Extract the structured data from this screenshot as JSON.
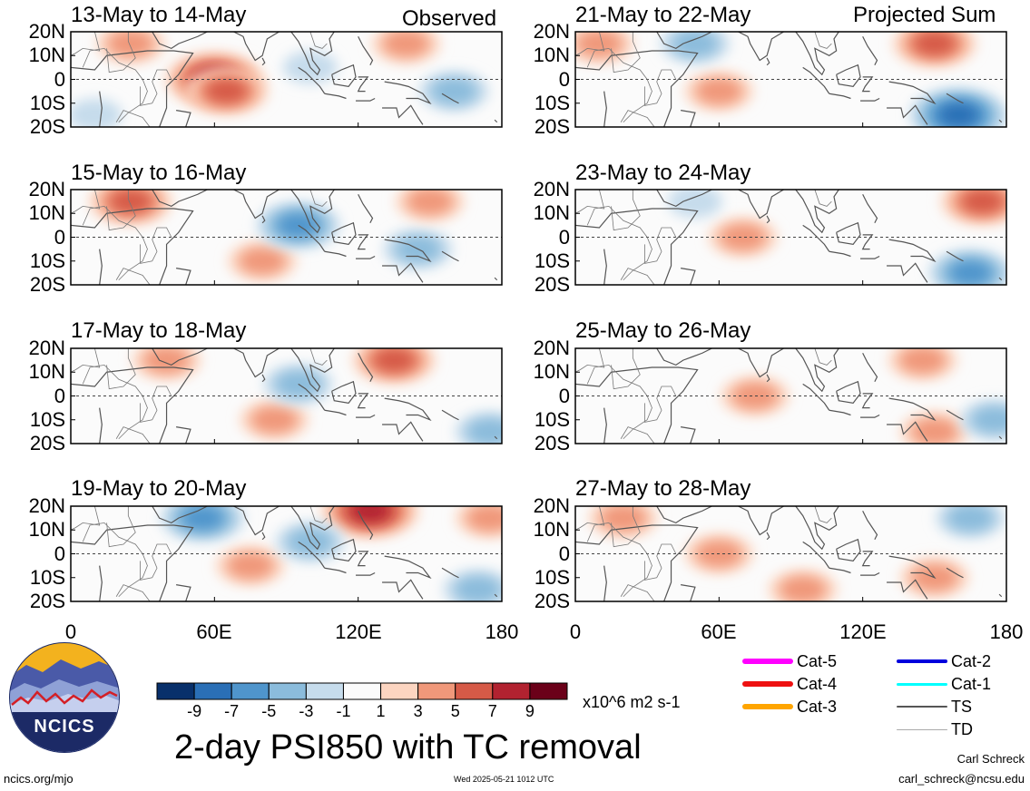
{
  "column_headers": {
    "left": "Observed",
    "right": "Projected Sum"
  },
  "panels": [
    {
      "title": "13-May to 14-May"
    },
    {
      "title": "15-May to 16-May"
    },
    {
      "title": "17-May to 18-May"
    },
    {
      "title": "19-May to 20-May"
    },
    {
      "title": "21-May to 22-May"
    },
    {
      "title": "23-May to 24-May"
    },
    {
      "title": "25-May to 26-May"
    },
    {
      "title": "27-May to 28-May"
    }
  ],
  "y_ticks": [
    "20N",
    "10N",
    "0",
    "10S",
    "20S"
  ],
  "x_ticks": [
    "0",
    "60E",
    "120E",
    "180"
  ],
  "colorbar": {
    "labels": [
      "-9",
      "-7",
      "-5",
      "-3",
      "-1",
      "1",
      "3",
      "5",
      "7",
      "9"
    ],
    "colors": [
      "#08306b",
      "#2a6fb6",
      "#4f95cc",
      "#8bbcdc",
      "#c6dcec",
      "#fbfbfb",
      "#fcd5c1",
      "#f0987a",
      "#d65a47",
      "#b22230",
      "#6b0019"
    ],
    "units": "x10^6 m2 s-1"
  },
  "legend": [
    {
      "label": "Cat-5",
      "color": "#ff00ff",
      "weight": 6
    },
    {
      "label": "Cat-4",
      "color": "#ee1111",
      "weight": 6
    },
    {
      "label": "Cat-3",
      "color": "#ffa500",
      "weight": 6
    },
    {
      "label": "Cat-2",
      "color": "#0000dd",
      "weight": 4
    },
    {
      "label": "Cat-1",
      "color": "#00ffff",
      "weight": 3
    },
    {
      "label": "TS",
      "color": "#555555",
      "weight": 2
    },
    {
      "label": "TD",
      "color": "#aaaaaa",
      "weight": 1
    }
  ],
  "title": "2-day PSI850 with TC removal",
  "footer": {
    "left": "ncics.org/mjo",
    "timestamp": "Wed 2025-05-21 1012 UTC",
    "author": "Carl Schreck",
    "email": "carl_schreck@ncsu.edu"
  },
  "logo_text": "NCICS",
  "chart_data": [
    {
      "type": "heatmap",
      "title": "13-May to 14-May",
      "ylim": [
        "20S",
        "20N"
      ],
      "xlim": [
        0,
        180
      ],
      "anomalies": [
        {
          "lon": 25,
          "lat": 15,
          "value": 3
        },
        {
          "lon": 60,
          "lat": 0,
          "value": 7
        },
        {
          "lon": 65,
          "lat": -5,
          "value": 5
        },
        {
          "lon": 140,
          "lat": 15,
          "value": 3
        },
        {
          "lon": 160,
          "lat": -5,
          "value": -3
        },
        {
          "lon": 100,
          "lat": 5,
          "value": -1
        },
        {
          "lon": 10,
          "lat": -15,
          "value": -1
        }
      ]
    },
    {
      "type": "heatmap",
      "title": "15-May to 16-May",
      "ylim": [
        "20S",
        "20N"
      ],
      "xlim": [
        0,
        180
      ],
      "anomalies": [
        {
          "lon": 25,
          "lat": 15,
          "value": 5
        },
        {
          "lon": 80,
          "lat": -10,
          "value": 3
        },
        {
          "lon": 95,
          "lat": 5,
          "value": -5
        },
        {
          "lon": 145,
          "lat": -5,
          "value": -3
        },
        {
          "lon": 150,
          "lat": 15,
          "value": 3
        }
      ]
    },
    {
      "type": "heatmap",
      "title": "17-May to 18-May",
      "ylim": [
        "20S",
        "20N"
      ],
      "xlim": [
        0,
        180
      ],
      "anomalies": [
        {
          "lon": 135,
          "lat": 15,
          "value": 5
        },
        {
          "lon": 85,
          "lat": -10,
          "value": 3
        },
        {
          "lon": 95,
          "lat": 5,
          "value": -3
        },
        {
          "lon": 175,
          "lat": -15,
          "value": -3
        },
        {
          "lon": 40,
          "lat": 15,
          "value": 3
        }
      ]
    },
    {
      "type": "heatmap",
      "title": "19-May to 20-May",
      "ylim": [
        "20S",
        "20N"
      ],
      "xlim": [
        0,
        180
      ],
      "anomalies": [
        {
          "lon": 125,
          "lat": 18,
          "value": 7
        },
        {
          "lon": 75,
          "lat": -5,
          "value": 3
        },
        {
          "lon": 55,
          "lat": 15,
          "value": -5
        },
        {
          "lon": 100,
          "lat": 5,
          "value": -3
        },
        {
          "lon": 170,
          "lat": -15,
          "value": -3
        },
        {
          "lon": 175,
          "lat": 15,
          "value": 3
        }
      ]
    },
    {
      "type": "heatmap",
      "title": "21-May to 22-May",
      "ylim": [
        "20S",
        "20N"
      ],
      "xlim": [
        0,
        180
      ],
      "anomalies": [
        {
          "lon": 150,
          "lat": 15,
          "value": 5
        },
        {
          "lon": 60,
          "lat": -5,
          "value": 3
        },
        {
          "lon": 160,
          "lat": -15,
          "value": -7
        },
        {
          "lon": 50,
          "lat": 15,
          "value": -3
        },
        {
          "lon": 10,
          "lat": 15,
          "value": 3
        }
      ]
    },
    {
      "type": "heatmap",
      "title": "23-May to 24-May",
      "ylim": [
        "20S",
        "20N"
      ],
      "xlim": [
        0,
        180
      ],
      "anomalies": [
        {
          "lon": 70,
          "lat": 0,
          "value": 3
        },
        {
          "lon": 170,
          "lat": 15,
          "value": 5
        },
        {
          "lon": 165,
          "lat": -15,
          "value": -5
        },
        {
          "lon": 50,
          "lat": 15,
          "value": -1
        }
      ]
    },
    {
      "type": "heatmap",
      "title": "25-May to 26-May",
      "ylim": [
        "20S",
        "20N"
      ],
      "xlim": [
        0,
        180
      ],
      "anomalies": [
        {
          "lon": 75,
          "lat": 0,
          "value": 3
        },
        {
          "lon": 145,
          "lat": 15,
          "value": 3
        },
        {
          "lon": 150,
          "lat": -15,
          "value": 3
        },
        {
          "lon": 175,
          "lat": -10,
          "value": -3
        }
      ]
    },
    {
      "type": "heatmap",
      "title": "27-May to 28-May",
      "ylim": [
        "20S",
        "20N"
      ],
      "xlim": [
        0,
        180
      ],
      "anomalies": [
        {
          "lon": 60,
          "lat": 0,
          "value": 3
        },
        {
          "lon": 95,
          "lat": -15,
          "value": 3
        },
        {
          "lon": 150,
          "lat": -10,
          "value": 3
        },
        {
          "lon": 165,
          "lat": 15,
          "value": -3
        },
        {
          "lon": 20,
          "lat": 15,
          "value": 3
        }
      ]
    }
  ]
}
